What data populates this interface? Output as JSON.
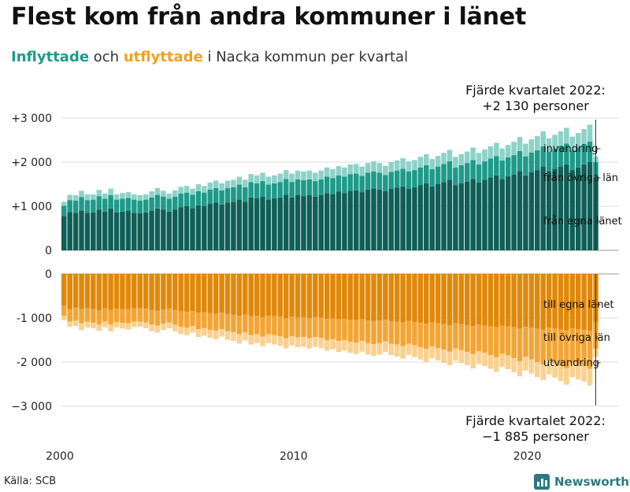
{
  "title": "Flest kom från andra kommuner i länet",
  "subtitle": {
    "in_word": "Inflyttade",
    "and_word": " och ",
    "out_word": "utflyttade",
    "rest": " i Nacka kommun per kvartal"
  },
  "source": "Källa: SCB",
  "brand": "Newsworthy",
  "colors": {
    "in_egna": "#0f5f57",
    "in_ovriga": "#1e9a8a",
    "in_invandring": "#8dd2c8",
    "out_egna": "#e0880a",
    "out_ovriga": "#f2a535",
    "out_utvandring": "#f9d190",
    "grid": "#dddddd"
  },
  "chart_data": {
    "type": "bar",
    "title": "Flest kom från andra kommuner i länet",
    "subtitle": "Inflyttade och utflyttade i Nacka kommun per kvartal",
    "x_ticks": [
      "2000",
      "2010",
      "2020"
    ],
    "x_start_year": 2000,
    "quarters_count": 92,
    "top_panel": {
      "ylim": [
        0,
        3000
      ],
      "y_ticks": [
        {
          "value": 0,
          "label": "0"
        },
        {
          "value": 1000,
          "label": "+1 000"
        },
        {
          "value": 2000,
          "label": "+2 000"
        },
        {
          "value": 3000,
          "label": "+3 000"
        }
      ],
      "series_labels": [
        "från egna länet",
        "från övriga län",
        "invandring"
      ],
      "annotation": [
        "Fjärde kvartalet 2022:",
        "+2 130 personer"
      ]
    },
    "bottom_panel": {
      "ylim": [
        -3000,
        0
      ],
      "y_ticks": [
        {
          "value": 0,
          "label": "0"
        },
        {
          "value": -1000,
          "label": "-1 000"
        },
        {
          "value": -2000,
          "label": "-2 000"
        },
        {
          "value": -3000,
          "label": "−3 000"
        }
      ],
      "series_labels": [
        "till egna länet",
        "till övriga län",
        "utvandring"
      ],
      "annotation": [
        "Fjärde kvartalet 2022:",
        "−1 885 personer"
      ]
    },
    "in_egna": [
      780,
      870,
      850,
      900,
      850,
      860,
      920,
      880,
      950,
      860,
      880,
      900,
      850,
      840,
      860,
      900,
      950,
      920,
      880,
      920,
      980,
      1000,
      960,
      1020,
      1000,
      1060,
      1080,
      1040,
      1080,
      1100,
      1150,
      1100,
      1200,
      1180,
      1220,
      1150,
      1180,
      1200,
      1260,
      1200,
      1250,
      1230,
      1250,
      1220,
      1250,
      1300,
      1280,
      1330,
      1300,
      1350,
      1360,
      1320,
      1380,
      1400,
      1380,
      1340,
      1400,
      1420,
      1450,
      1400,
      1430,
      1480,
      1520,
      1450,
      1500,
      1550,
      1600,
      1480,
      1520,
      1560,
      1620,
      1540,
      1600,
      1650,
      1700,
      1620,
      1680,
      1720,
      1800,
      1700,
      1780,
      1820,
      1900,
      1800,
      1850,
      1900,
      1950,
      1820,
      1880,
      1950,
      2000,
      1600
    ],
    "in_ovriga": [
      230,
      270,
      280,
      310,
      290,
      290,
      310,
      290,
      300,
      290,
      290,
      290,
      300,
      290,
      290,
      300,
      310,
      300,
      290,
      300,
      310,
      310,
      300,
      320,
      310,
      320,
      330,
      320,
      330,
      330,
      340,
      330,
      350,
      340,
      350,
      340,
      340,
      350,
      360,
      350,
      360,
      360,
      360,
      350,
      360,
      370,
      360,
      370,
      370,
      380,
      380,
      370,
      380,
      390,
      380,
      370,
      380,
      390,
      400,
      390,
      390,
      400,
      410,
      390,
      400,
      410,
      420,
      400,
      410,
      420,
      430,
      410,
      420,
      430,
      440,
      420,
      430,
      440,
      450,
      430,
      440,
      450,
      460,
      440,
      450,
      460,
      470,
      440,
      450,
      460,
      470,
      400
    ],
    "in_invandring": [
      90,
      120,
      120,
      140,
      130,
      120,
      140,
      120,
      150,
      120,
      130,
      130,
      120,
      120,
      120,
      140,
      150,
      130,
      120,
      140,
      150,
      150,
      140,
      160,
      150,
      160,
      170,
      160,
      170,
      170,
      180,
      170,
      180,
      180,
      190,
      180,
      180,
      190,
      200,
      190,
      200,
      200,
      200,
      190,
      200,
      210,
      200,
      210,
      210,
      220,
      220,
      210,
      220,
      230,
      220,
      210,
      220,
      230,
      240,
      230,
      230,
      240,
      250,
      230,
      240,
      250,
      260,
      240,
      250,
      260,
      280,
      260,
      270,
      280,
      300,
      270,
      280,
      300,
      320,
      290,
      300,
      320,
      340,
      300,
      320,
      340,
      360,
      320,
      330,
      340,
      380,
      130
    ],
    "out_egna": [
      720,
      800,
      770,
      800,
      780,
      800,
      820,
      780,
      820,
      790,
      800,
      800,
      780,
      780,
      790,
      820,
      830,
      810,
      790,
      820,
      850,
      860,
      840,
      880,
      870,
      890,
      900,
      880,
      910,
      920,
      950,
      920,
      960,
      950,
      980,
      950,
      960,
      970,
      1000,
      970,
      990,
      980,
      1000,
      980,
      990,
      1020,
      1010,
      1030,
      1020,
      1040,
      1050,
      1030,
      1060,
      1070,
      1060,
      1040,
      1070,
      1080,
      1100,
      1070,
      1090,
      1110,
      1130,
      1100,
      1120,
      1140,
      1160,
      1120,
      1140,
      1160,
      1180,
      1150,
      1170,
      1190,
      1210,
      1170,
      1190,
      1210,
      1240,
      1200,
      1220,
      1240,
      1260,
      1220,
      1240,
      1260,
      1280,
      1230,
      1250,
      1270,
      1290,
      1100
    ],
    "out_ovriga": [
      230,
      280,
      290,
      320,
      300,
      310,
      330,
      300,
      330,
      300,
      310,
      320,
      300,
      300,
      310,
      330,
      340,
      320,
      310,
      330,
      350,
      360,
      340,
      370,
      360,
      380,
      390,
      370,
      390,
      400,
      420,
      400,
      430,
      420,
      440,
      420,
      430,
      440,
      460,
      440,
      450,
      450,
      460,
      450,
      460,
      480,
      470,
      490,
      480,
      500,
      510,
      490,
      510,
      520,
      510,
      490,
      510,
      520,
      540,
      510,
      530,
      550,
      570,
      540,
      560,
      580,
      600,
      570,
      590,
      610,
      640,
      600,
      620,
      650,
      680,
      640,
      660,
      700,
      740,
      680,
      720,
      760,
      800,
      740,
      780,
      820,
      860,
      780,
      800,
      820,
      860,
      600
    ],
    "out_utvandring": [
      100,
      120,
      120,
      150,
      130,
      120,
      140,
      130,
      150,
      120,
      130,
      140,
      120,
      120,
      130,
      150,
      160,
      140,
      130,
      150,
      160,
      170,
      150,
      180,
      170,
      180,
      190,
      170,
      190,
      200,
      210,
      190,
      210,
      200,
      220,
      200,
      210,
      220,
      230,
      210,
      220,
      220,
      230,
      220,
      230,
      240,
      230,
      250,
      240,
      250,
      260,
      240,
      260,
      270,
      260,
      240,
      260,
      270,
      280,
      260,
      270,
      280,
      300,
      270,
      280,
      300,
      310,
      280,
      290,
      300,
      320,
      290,
      300,
      310,
      330,
      300,
      310,
      320,
      340,
      310,
      320,
      340,
      350,
      320,
      330,
      350,
      370,
      330,
      340,
      350,
      380,
      185
    ]
  }
}
